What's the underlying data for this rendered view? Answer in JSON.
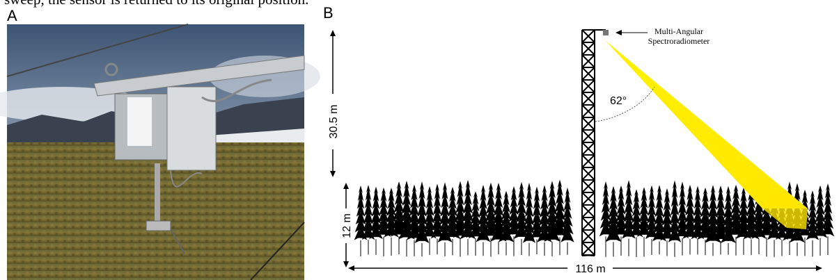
{
  "caption_fragment": "sweep, the sensor is returned to its original position.",
  "panels": [
    {
      "label": "A"
    },
    {
      "label": "B",
      "instrument_label": [
        "Multi-Angular",
        "Spectroradiometer"
      ],
      "angle_label": "62°",
      "tower_height_label": "30.5 m",
      "canopy_height_label": "12 m",
      "transect_length_label": "116 m"
    }
  ]
}
